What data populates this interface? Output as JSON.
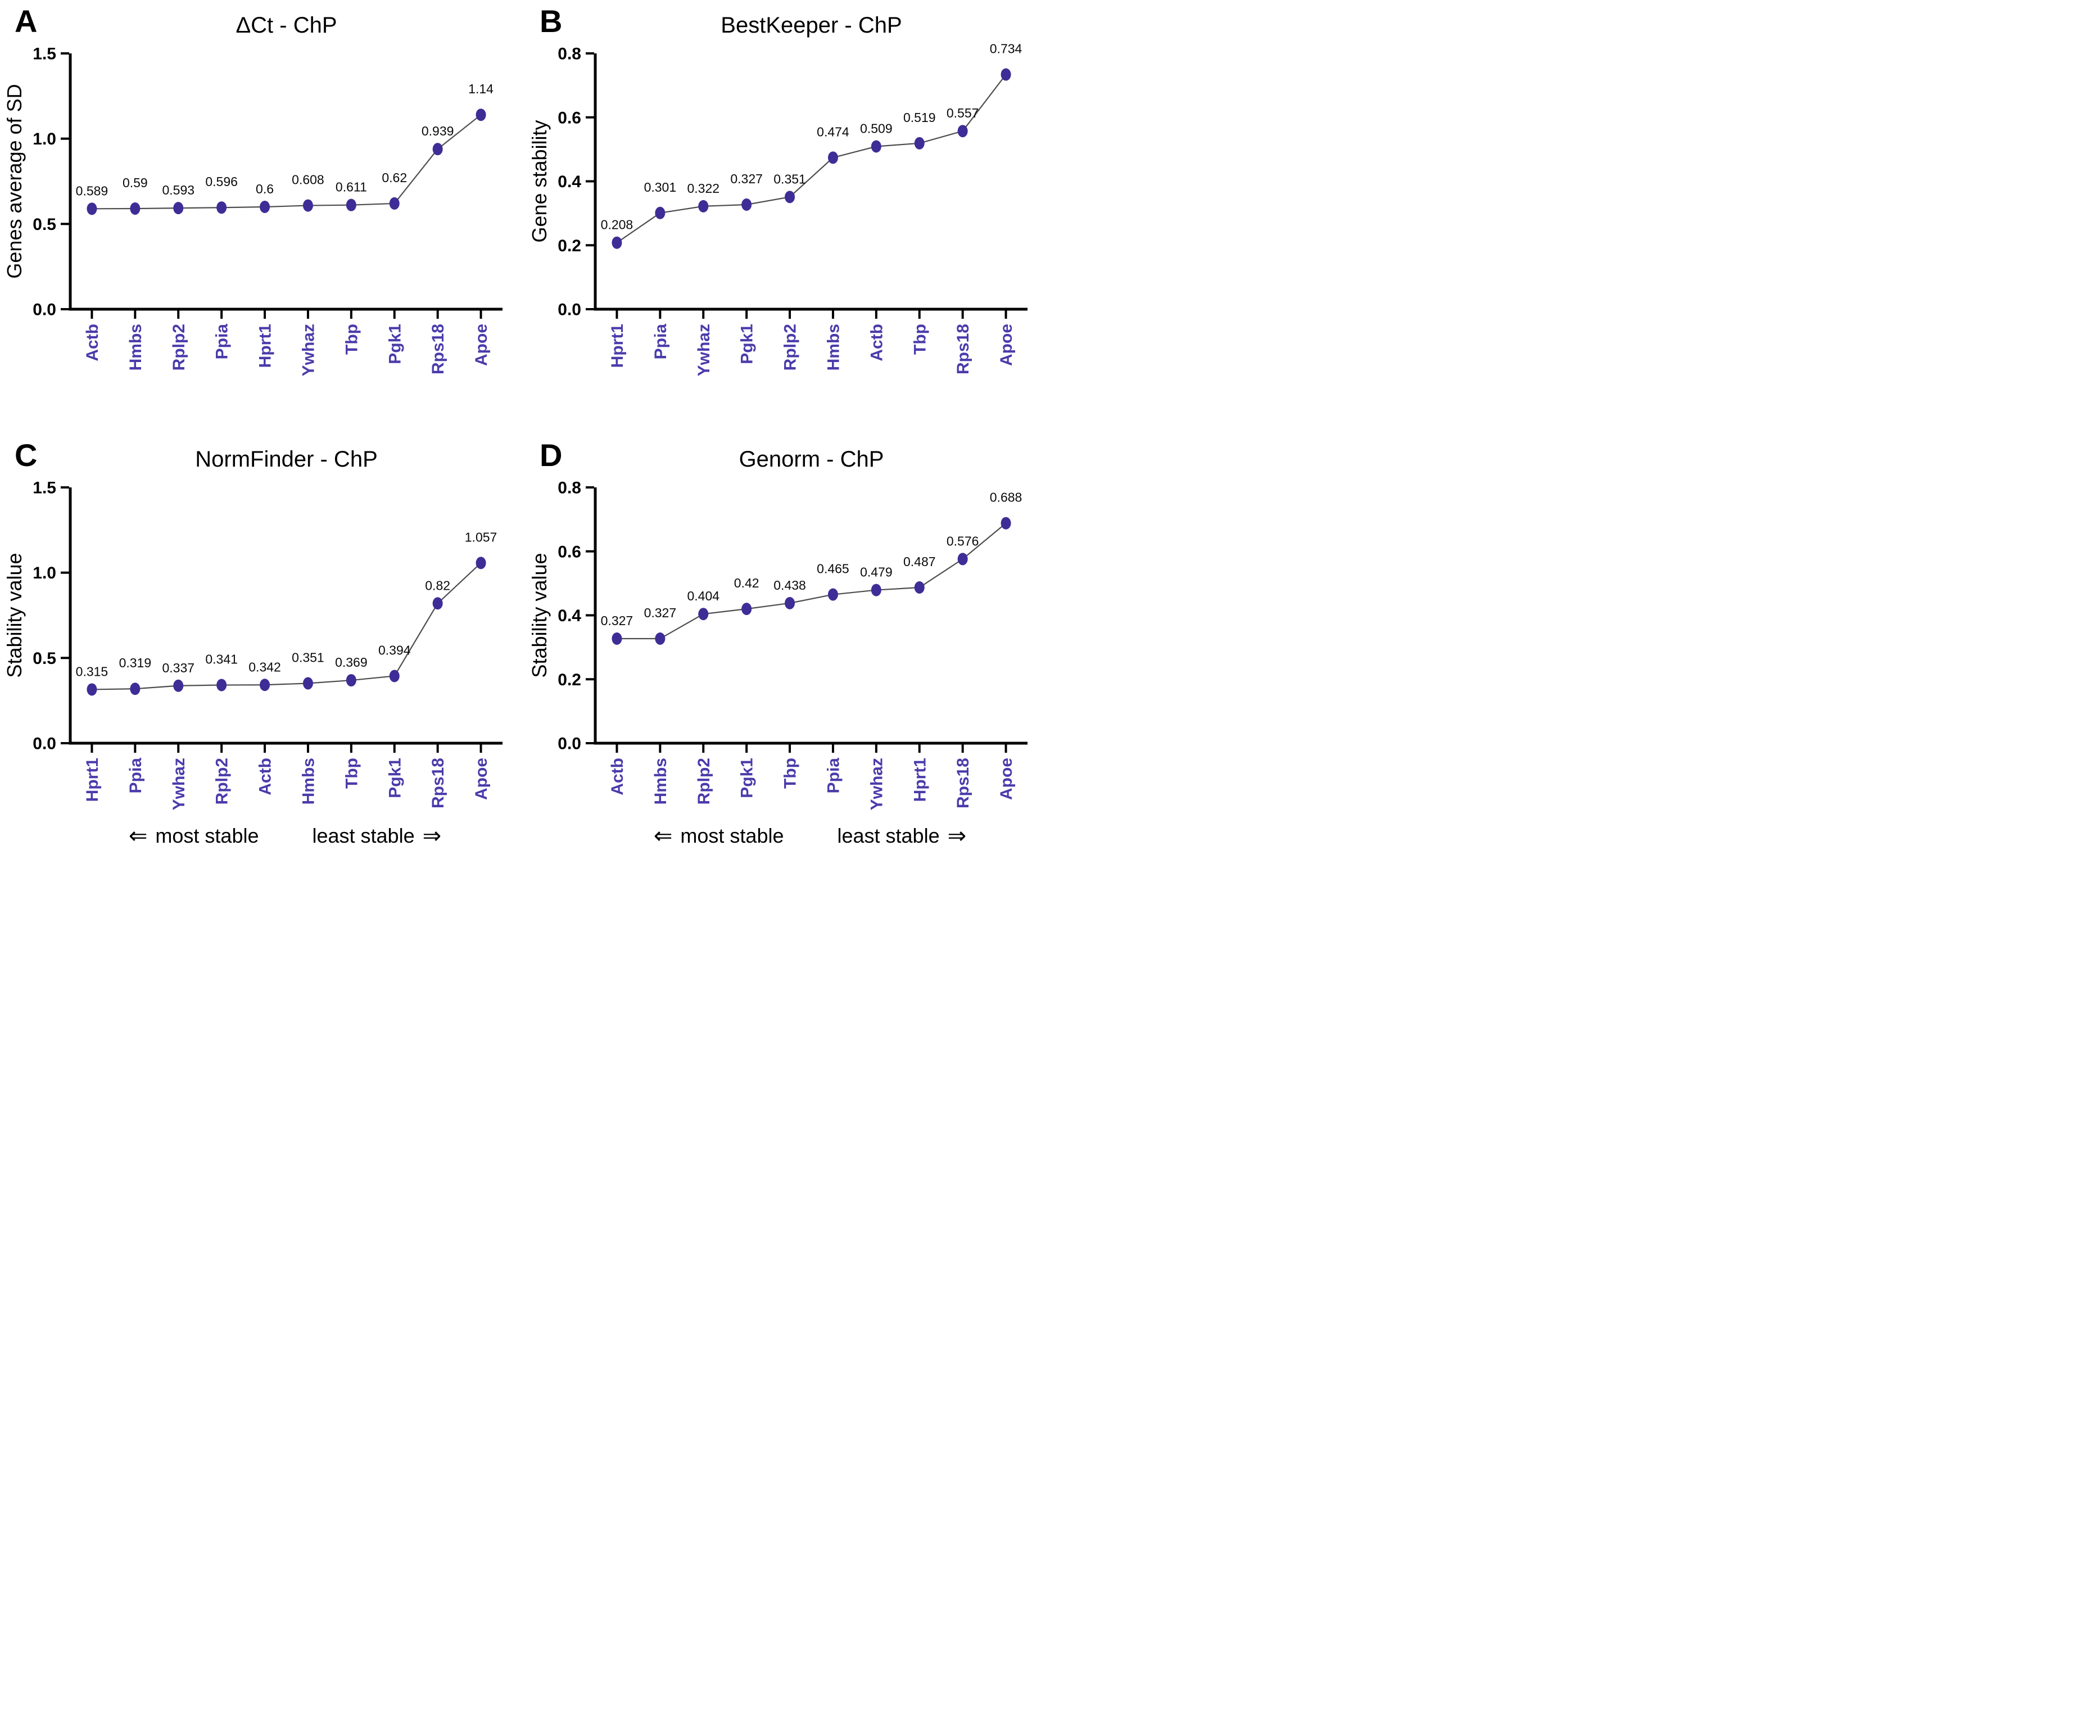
{
  "colors": {
    "marker": "#3E2D96",
    "series_line": "#4D4D4D",
    "axis": "#000000",
    "value_label": "#0A0A0A",
    "gene_label": "#4A3BAA",
    "footer_text": "#000000"
  },
  "footer": {
    "left_arrow": "⇐",
    "most_stable_label": "most stable",
    "least_stable_label": "least stable",
    "right_arrow": "⇒"
  },
  "chart_data": [
    {
      "panel_letter": "A",
      "type": "line",
      "title": "ΔCt - ChP",
      "xlabel": "",
      "ylabel": "Genes average of SD",
      "ylim": [
        0,
        1.5
      ],
      "yticks": [
        0,
        0.5,
        1.0,
        1.5
      ],
      "ytick_labels": [
        "0.0",
        "0.5",
        "1.0",
        "1.5"
      ],
      "grid": false,
      "legend": "none",
      "categories": [
        "Actb",
        "Hmbs",
        "Rplp2",
        "Ppia",
        "Hprt1",
        "Ywhaz",
        "Tbp",
        "Pgk1",
        "Rps18",
        "Apoe"
      ],
      "values": [
        0.589,
        0.59,
        0.593,
        0.596,
        0.6,
        0.608,
        0.611,
        0.62,
        0.939,
        1.14
      ],
      "point_labels": [
        "0.589",
        "0.59",
        "0.593",
        "0.596",
        "0.6",
        "0.608",
        "0.611",
        "0.62",
        "0.939",
        "1.14"
      ]
    },
    {
      "panel_letter": "B",
      "type": "line",
      "title": "BestKeeper - ChP",
      "xlabel": "",
      "ylabel": "Gene stability",
      "ylim": [
        0,
        0.8
      ],
      "yticks": [
        0,
        0.2,
        0.4,
        0.6,
        0.8
      ],
      "ytick_labels": [
        "0.0",
        "0.2",
        "0.4",
        "0.6",
        "0.8"
      ],
      "grid": false,
      "legend": "none",
      "categories": [
        "Hprt1",
        "Ppia",
        "Ywhaz",
        "Pgk1",
        "Rplp2",
        "Hmbs",
        "Actb",
        "Tbp",
        "Rps18",
        "Apoe"
      ],
      "values": [
        0.208,
        0.301,
        0.322,
        0.327,
        0.351,
        0.474,
        0.509,
        0.519,
        0.557,
        0.734
      ],
      "point_labels": [
        "0.208",
        "0.301",
        "0.322",
        "0.327",
        "0.351",
        "0.474",
        "0.509",
        "0.519",
        "0.557",
        "0.734"
      ]
    },
    {
      "panel_letter": "C",
      "type": "line",
      "title": "NormFinder - ChP",
      "xlabel": "",
      "ylabel": "Stability value",
      "ylim": [
        0,
        1.5
      ],
      "yticks": [
        0,
        0.5,
        1.0,
        1.5
      ],
      "ytick_labels": [
        "0.0",
        "0.5",
        "1.0",
        "1.5"
      ],
      "grid": false,
      "legend": "none",
      "categories": [
        "Hprt1",
        "Ppia",
        "Ywhaz",
        "Rplp2",
        "Actb",
        "Hmbs",
        "Tbp",
        "Pgk1",
        "Rps18",
        "Apoe"
      ],
      "values": [
        0.315,
        0.319,
        0.337,
        0.341,
        0.342,
        0.351,
        0.369,
        0.394,
        0.82,
        1.057
      ],
      "point_labels": [
        "0.315",
        "0.319",
        "0.337",
        "0.341",
        "0.342",
        "0.351",
        "0.369",
        "0.394",
        "0.82",
        "1.057"
      ]
    },
    {
      "panel_letter": "D",
      "type": "line",
      "title": "Genorm - ChP",
      "xlabel": "",
      "ylabel": "Stability value",
      "ylim": [
        0,
        0.8
      ],
      "yticks": [
        0,
        0.2,
        0.4,
        0.6,
        0.8
      ],
      "ytick_labels": [
        "0.0",
        "0.2",
        "0.4",
        "0.6",
        "0.8"
      ],
      "grid": false,
      "legend": "none",
      "categories": [
        "Actb",
        "Hmbs",
        "Rplp2",
        "Pgk1",
        "Tbp",
        "Ppia",
        "Ywhaz",
        "Hprt1",
        "Rps18",
        "Apoe"
      ],
      "values": [
        0.327,
        0.327,
        0.404,
        0.42,
        0.438,
        0.465,
        0.479,
        0.487,
        0.576,
        0.688
      ],
      "point_labels": [
        "0.327",
        "0.327",
        "0.404",
        "0.42",
        "0.438",
        "0.465",
        "0.479",
        "0.487",
        "0.576",
        "0.688"
      ]
    }
  ]
}
